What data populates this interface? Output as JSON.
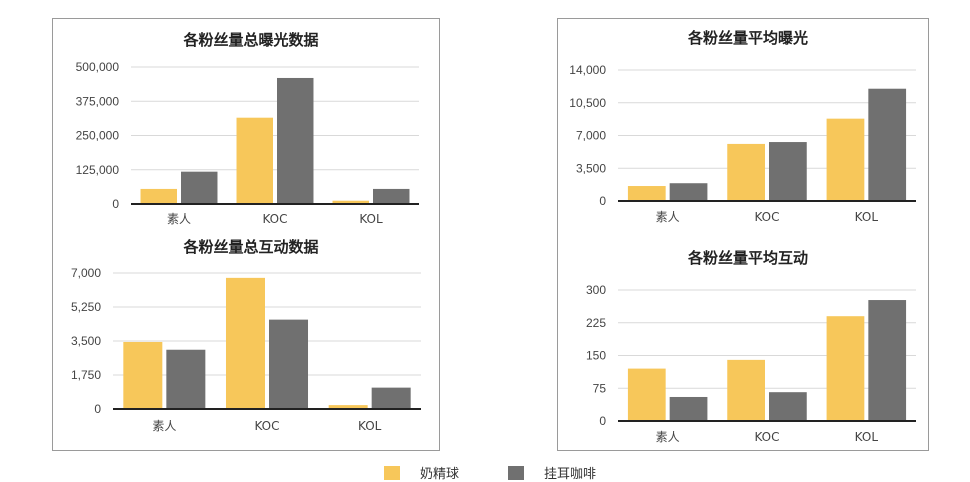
{
  "colors": {
    "naijingqiu": "#F7C75A",
    "guaercafe": "#707070",
    "axis": "#222222",
    "grid": "#d9d9d9",
    "text": "#444444"
  },
  "legend": [
    {
      "name": "奶精球",
      "color": "#F7C75A"
    },
    {
      "name": "挂耳咖啡",
      "color": "#707070"
    }
  ],
  "chart_data": [
    {
      "type": "bar",
      "title": "各粉丝量总曝光数据",
      "categories": [
        "素人",
        "KOC",
        "KOL"
      ],
      "yticks": [
        "0",
        "125,000",
        "250,000",
        "375,000",
        "500,000"
      ],
      "ylim": [
        0,
        500000
      ],
      "series": [
        {
          "name": "奶精球",
          "values": [
            55000,
            315000,
            12000
          ]
        },
        {
          "name": "挂耳咖啡",
          "values": [
            118000,
            460000,
            55000
          ]
        }
      ]
    },
    {
      "type": "bar",
      "title": "各粉丝量总互动数据",
      "categories": [
        "素人",
        "KOC",
        "KOL"
      ],
      "yticks": [
        "0",
        "1,750",
        "3,500",
        "5,250",
        "7,000"
      ],
      "ylim": [
        0,
        7000
      ],
      "series": [
        {
          "name": "奶精球",
          "values": [
            3450,
            6750,
            200
          ]
        },
        {
          "name": "挂耳咖啡",
          "values": [
            3050,
            4600,
            1100
          ]
        }
      ]
    },
    {
      "type": "bar",
      "title": "各粉丝量平均曝光",
      "categories": [
        "素人",
        "KOC",
        "KOL"
      ],
      "yticks": [
        "0",
        "3,500",
        "7,000",
        "10,500",
        "14,000"
      ],
      "ylim": [
        0,
        14000
      ],
      "series": [
        {
          "name": "奶精球",
          "values": [
            1600,
            6100,
            8800
          ]
        },
        {
          "name": "挂耳咖啡",
          "values": [
            1900,
            6300,
            12000
          ]
        }
      ]
    },
    {
      "type": "bar",
      "title": "各粉丝量平均互动",
      "categories": [
        "素人",
        "KOC",
        "KOL"
      ],
      "yticks": [
        "0",
        "75",
        "150",
        "225",
        "300"
      ],
      "ylim": [
        0,
        300
      ],
      "series": [
        {
          "name": "奶精球",
          "values": [
            120,
            140,
            240
          ]
        },
        {
          "name": "挂耳咖啡",
          "values": [
            55,
            66,
            277
          ]
        }
      ]
    }
  ]
}
